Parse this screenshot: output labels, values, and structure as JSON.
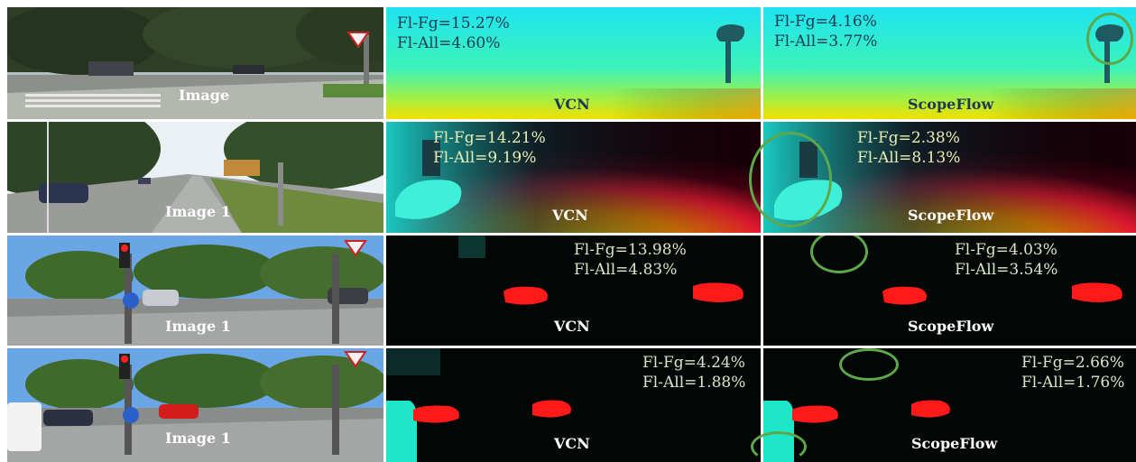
{
  "rows": [
    {
      "image_label": "Image",
      "vcn": {
        "label": "VCN",
        "fl_fg": "Fl-Fg=15.27%",
        "fl_all": "Fl-All=4.60%"
      },
      "scopeflow": {
        "label": "ScopeFlow",
        "fl_fg": "Fl-Fg=4.16%",
        "fl_all": "Fl-All=3.77%"
      }
    },
    {
      "image_label": "Image 1",
      "vcn": {
        "label": "VCN",
        "fl_fg": "Fl-Fg=14.21%",
        "fl_all": "Fl-All=9.19%"
      },
      "scopeflow": {
        "label": "ScopeFlow",
        "fl_fg": "Fl-Fg=2.38%",
        "fl_all": "Fl-All=8.13%"
      }
    },
    {
      "image_label": "Image 1",
      "vcn": {
        "label": "VCN",
        "fl_fg": "Fl-Fg=13.98%",
        "fl_all": "Fl-All=4.83%"
      },
      "scopeflow": {
        "label": "ScopeFlow",
        "fl_fg": "Fl-Fg=4.03%",
        "fl_all": "Fl-All=3.54%"
      }
    },
    {
      "image_label": "Image 1",
      "vcn": {
        "label": "VCN",
        "fl_fg": "Fl-Fg=4.24%",
        "fl_all": "Fl-All=1.88%"
      },
      "scopeflow": {
        "label": "ScopeFlow",
        "fl_fg": "Fl-Fg=2.66%",
        "fl_all": "Fl-All=1.76%"
      }
    }
  ],
  "colors": {
    "highlight_circle": "#5da84a",
    "flow_red": "#ff1a1a",
    "flow_cyan": "#1ee6c8"
  }
}
